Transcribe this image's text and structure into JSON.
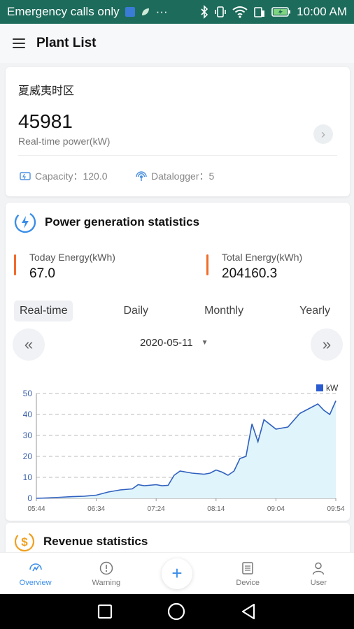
{
  "statusbar": {
    "carrier": "Emergency calls only",
    "time": "10:00 AM",
    "more": "···"
  },
  "appbar": {
    "title": "Plant List"
  },
  "plant": {
    "name": "夏威夷时区",
    "power_value": "45981",
    "power_label": "Real-time power(kW)",
    "capacity": "Capacity：120.0",
    "datalogger": "Datalogger：5"
  },
  "power_stats": {
    "title": "Power generation statistics",
    "today_label": "Today Energy(kWh)",
    "today_value": "67.0",
    "total_label": "Total Energy(kWh)",
    "total_value": "204160.3",
    "tabs": [
      "Real-time",
      "Daily",
      "Monthly",
      "Yearly"
    ],
    "active_tab": "Real-time",
    "date": "2020-05-11"
  },
  "chart_data": {
    "type": "area",
    "legend": "kW",
    "legend_position": "top-right",
    "ylim": [
      0,
      50
    ],
    "yticks": [
      "0",
      "10",
      "20",
      "30",
      "40",
      "50"
    ],
    "xticks": [
      "05:44",
      "06:34",
      "07:24",
      "08:14",
      "09:04",
      "09:54"
    ],
    "grid": true,
    "line_color": "#2f5fbf",
    "fill_color": "#dff4fb",
    "series": [
      {
        "x": [
          "05:44",
          "05:54",
          "06:04",
          "06:14",
          "06:24",
          "06:34",
          "06:44",
          "06:54",
          "07:04",
          "07:09",
          "07:14",
          "07:24",
          "07:29",
          "07:34",
          "07:39",
          "07:44",
          "07:54",
          "08:04",
          "08:09",
          "08:14",
          "08:19",
          "08:24",
          "08:29",
          "08:34",
          "08:39",
          "08:44",
          "08:49",
          "08:54",
          "09:04",
          "09:14",
          "09:24",
          "09:29",
          "09:34",
          "09:39",
          "09:44",
          "09:49",
          "09:54"
        ],
        "values": [
          0,
          0.2,
          0.5,
          0.8,
          1.0,
          1.5,
          3.0,
          4.0,
          4.5,
          6.5,
          6.0,
          6.5,
          6.0,
          6.2,
          11.0,
          13.0,
          12.0,
          11.5,
          12.0,
          13.5,
          12.5,
          11.0,
          13.0,
          19.0,
          20.0,
          35.5,
          27.0,
          37.5,
          33.0,
          34.0,
          40.5,
          42.0,
          43.5,
          45.0,
          42.0,
          40.0,
          46.5
        ]
      }
    ]
  },
  "revenue": {
    "title": "Revenue statistics"
  },
  "tabbar": {
    "items": [
      "Overview",
      "Warning",
      "Device",
      "User"
    ],
    "active": "Overview"
  },
  "colors": {
    "status_bar": "#1d6b5a",
    "accent": "#3b8ee8",
    "energy_bar": "#f06b2a"
  }
}
